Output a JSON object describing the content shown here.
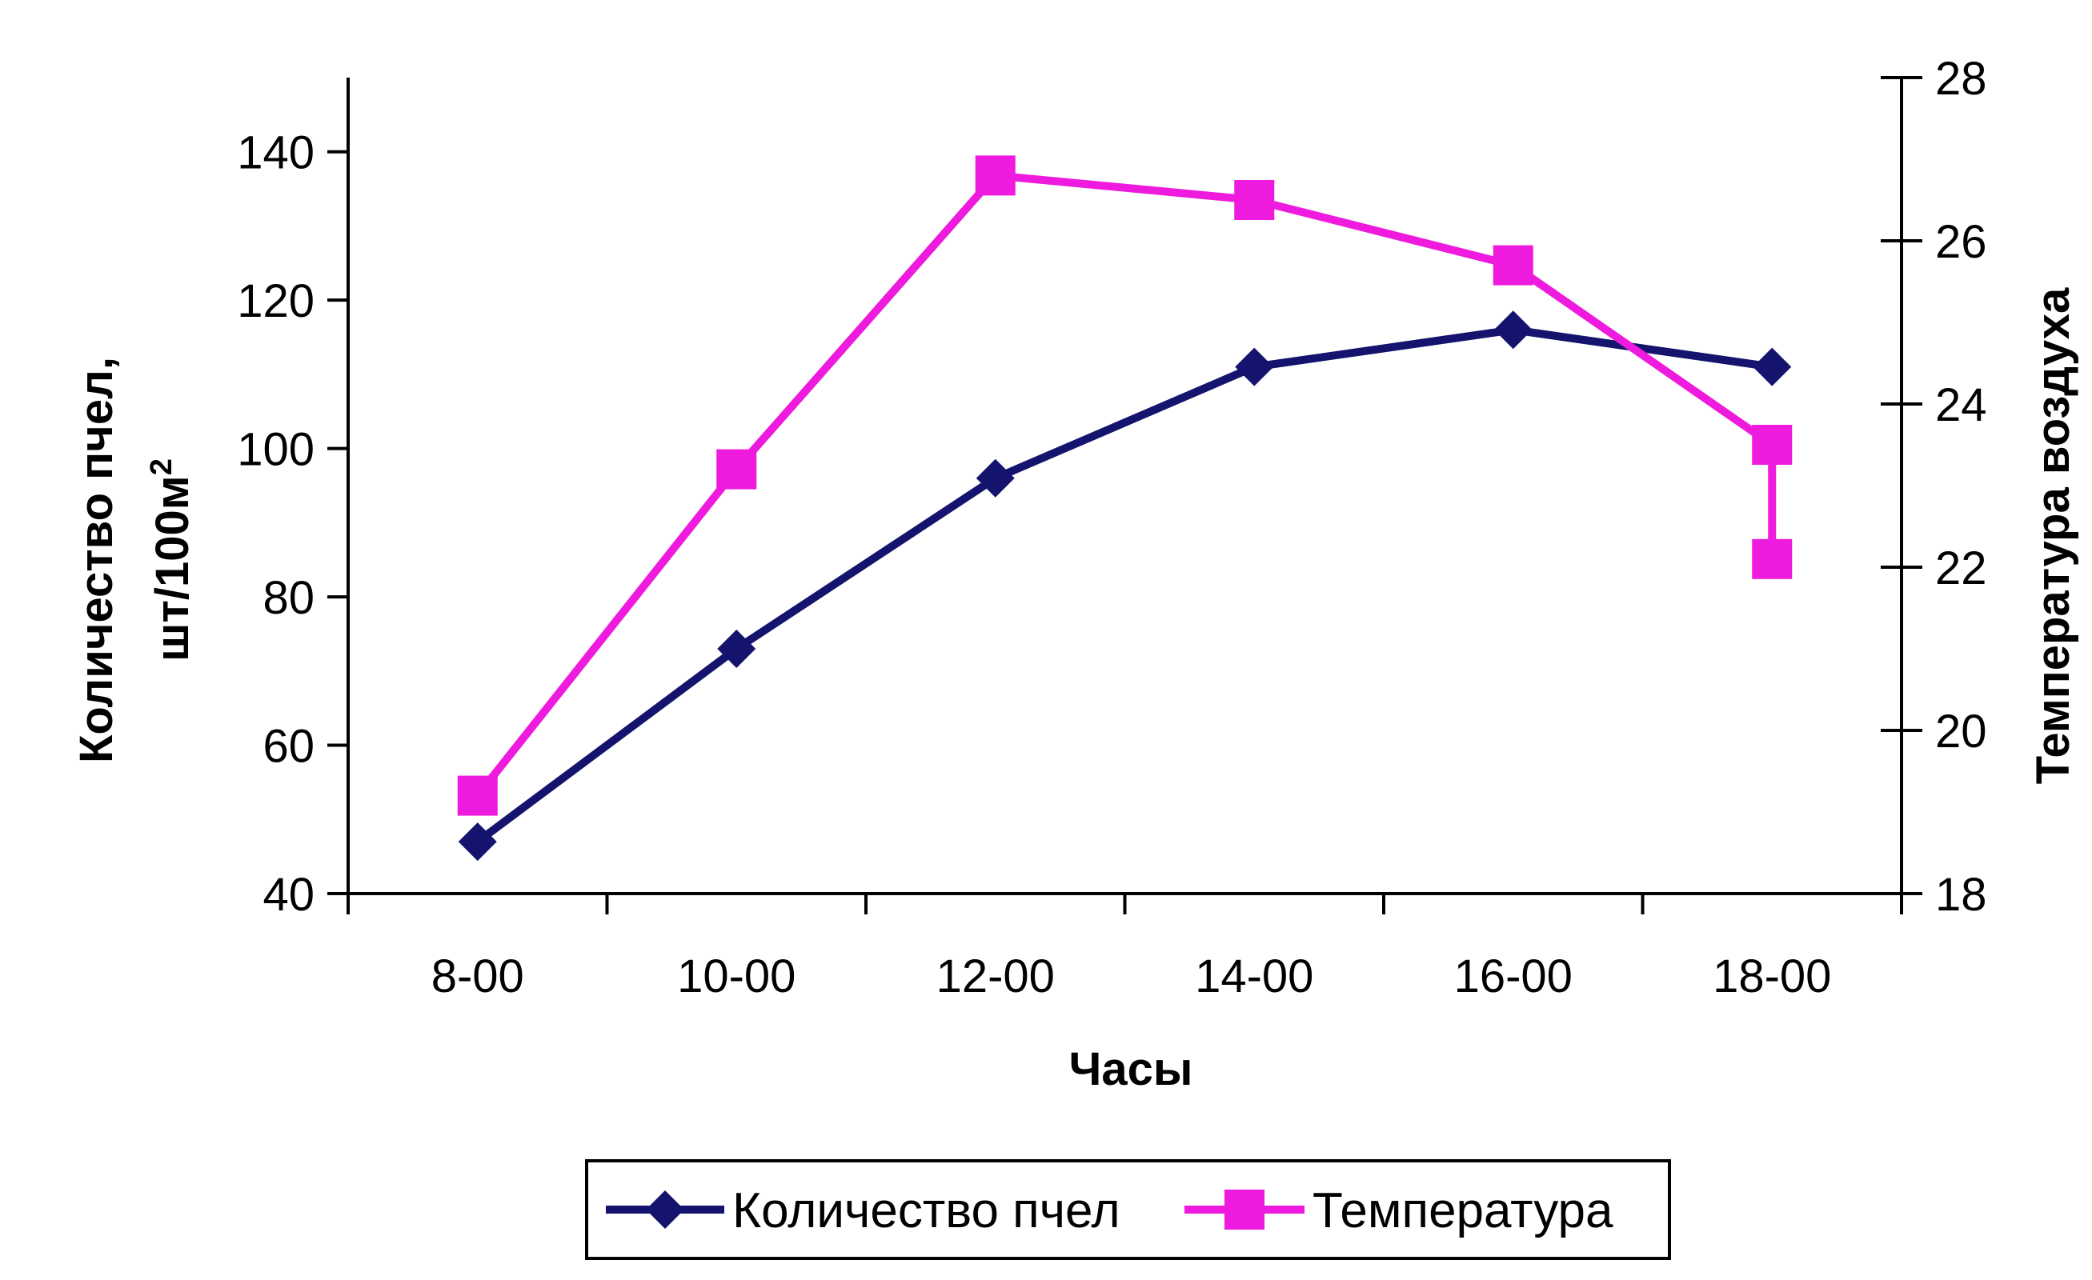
{
  "chart_data": {
    "type": "line",
    "categories": [
      "8-00",
      "10-00",
      "12-00",
      "14-00",
      "16-00",
      "18-00"
    ],
    "xlabel": "Часы",
    "ylabel_left": "Количество пчел,",
    "ylabel_left_unit": "шт/100м",
    "ylabel_left_sup": "2",
    "ylabel_right": "Температура воздуха",
    "ylim_left": [
      40,
      150
    ],
    "yticks_left": [
      40,
      60,
      80,
      100,
      120,
      140
    ],
    "ylim_right": [
      18,
      28
    ],
    "yticks_right": [
      18,
      20,
      22,
      24,
      26,
      28
    ],
    "grid": false,
    "legend_position": "bottom",
    "series": [
      {
        "name": "Количество пчел",
        "axis": "left",
        "color": "#14146e",
        "marker": "diamond",
        "values": [
          47,
          73,
          96,
          111,
          116,
          111
        ]
      },
      {
        "name": "Температура",
        "axis": "right",
        "color": "#ee1ade",
        "marker": "square",
        "values": [
          19.2,
          23.2,
          26.8,
          26.5,
          25.7,
          [
            23.5,
            22.1
          ]
        ]
      }
    ]
  }
}
